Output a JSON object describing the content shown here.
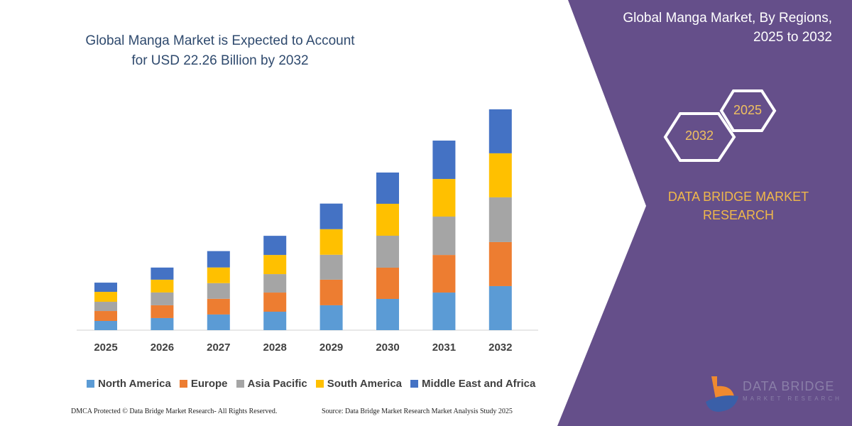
{
  "title": "Global Manga Market is Expected to Account for USD 22.26 Billion by 2032",
  "panel": {
    "title": "Global Manga Market, By Regions, 2025 to 2032",
    "hex_left": "2032",
    "hex_right": "2025",
    "brand": "DATA BRIDGE MARKET RESEARCH",
    "logo_text": "DATA BRIDGE",
    "logo_sub": "MARKET RESEARCH",
    "color": "#654f8a"
  },
  "footer": {
    "left": "DMCA Protected © Data Bridge Market Research-  All Rights Reserved.",
    "right": "Source: Data Bridge Market Research  Market Analysis Study 2025"
  },
  "chart_data": {
    "type": "bar",
    "stacked": true,
    "title": "Global Manga Market is Expected to Account for USD 22.26 Billion by 2032",
    "unit": "USD Billion",
    "categories": [
      "2025",
      "2026",
      "2027",
      "2028",
      "2029",
      "2030",
      "2031",
      "2032"
    ],
    "legend_position": "bottom",
    "grid": false,
    "series": [
      {
        "name": "North America",
        "color": "#5b9bd5",
        "values": [
          0.93,
          1.22,
          1.58,
          1.86,
          2.51,
          3.15,
          3.79,
          4.44
        ]
      },
      {
        "name": "Europe",
        "color": "#ed7d31",
        "values": [
          1.0,
          1.29,
          1.58,
          1.93,
          2.58,
          3.15,
          3.79,
          4.44
        ]
      },
      {
        "name": "Asia Pacific",
        "color": "#a5a5a5",
        "values": [
          0.93,
          1.29,
          1.58,
          1.86,
          2.51,
          3.22,
          3.87,
          4.51
        ]
      },
      {
        "name": "South America",
        "color": "#ffc000",
        "values": [
          1.0,
          1.29,
          1.58,
          1.93,
          2.58,
          3.22,
          3.79,
          4.44
        ]
      },
      {
        "name": "Middle East and Africa",
        "color": "#4472c4",
        "values": [
          0.93,
          1.22,
          1.65,
          1.93,
          2.58,
          3.15,
          3.87,
          4.43
        ]
      }
    ]
  }
}
